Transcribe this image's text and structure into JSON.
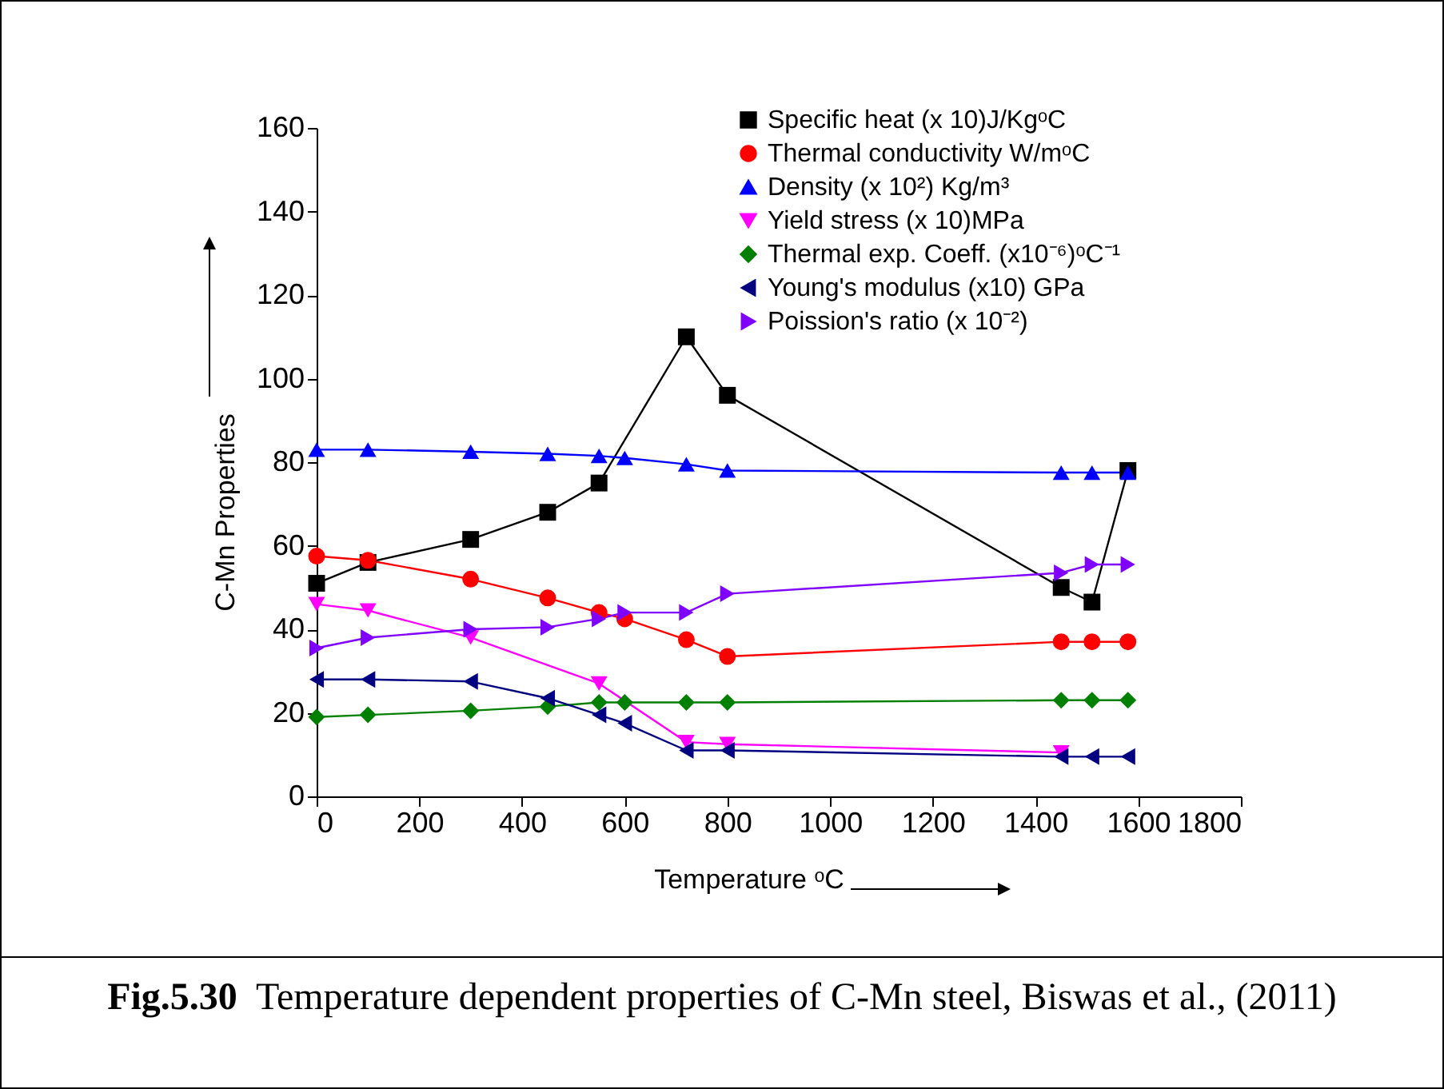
{
  "chart_data": {
    "type": "line",
    "xlabel": "Temperature ᵒC",
    "ylabel": "C-Mn Properties",
    "annotations": [
      "Fig.5.30",
      "Temperature dependent properties of C-Mn steel, Biswas et al., (2011)"
    ],
    "xlim": [
      0,
      1800
    ],
    "xticks": [
      0,
      200,
      400,
      600,
      800,
      1000,
      1200,
      1400,
      1600,
      1800
    ],
    "ylim": [
      0,
      160
    ],
    "yticks": [
      0,
      20,
      40,
      60,
      80,
      100,
      120,
      140,
      160
    ],
    "grid": false,
    "legend": "top right",
    "series": [
      {
        "name": "Specific heat (x 10)J/KgᵒC",
        "color": "#000000",
        "marker": "square",
        "x": [
          0,
          100,
          300,
          450,
          550,
          720,
          800,
          1450,
          1510,
          1580
        ],
        "values": [
          51,
          56,
          61.5,
          68,
          75,
          110,
          96,
          50,
          46.5,
          78
        ]
      },
      {
        "name": "Thermal conductivity W/mᵒC",
        "color": "#ff0000",
        "marker": "circle",
        "x": [
          0,
          100,
          300,
          450,
          550,
          600,
          720,
          800,
          1450,
          1510,
          1580
        ],
        "values": [
          57.5,
          56.5,
          52,
          47.5,
          44,
          42.5,
          37.5,
          33.5,
          37,
          37,
          37
        ]
      },
      {
        "name": "Density (x 10²) Kg/m³",
        "color": "#0000ff",
        "marker": "triangle",
        "x": [
          0,
          100,
          300,
          450,
          550,
          600,
          720,
          800,
          1450,
          1510,
          1580
        ],
        "values": [
          83,
          83,
          82.5,
          82,
          81.5,
          81,
          79.5,
          78,
          77.5,
          77.5,
          77.5
        ]
      },
      {
        "name": "Yield stress (x 10)MPa",
        "color": "#ff00ff",
        "marker": "triangle-down",
        "x": [
          0,
          100,
          300,
          550,
          720,
          800,
          1450
        ],
        "values": [
          46,
          44.5,
          38,
          27,
          13,
          12.5,
          10.5
        ]
      },
      {
        "name": "Thermal exp. Coeff. (x10⁻⁶)ᵒC⁻¹",
        "color": "#008000",
        "marker": "diamond",
        "x": [
          0,
          100,
          300,
          450,
          550,
          600,
          720,
          800,
          1450,
          1510,
          1580
        ],
        "values": [
          19,
          19.5,
          20.5,
          21.5,
          22.5,
          22.5,
          22.5,
          22.5,
          23,
          23,
          23
        ]
      },
      {
        "name": "Young's modulus (x10) GPa",
        "color": "#000080",
        "marker": "triangle-left",
        "x": [
          0,
          100,
          300,
          450,
          550,
          600,
          720,
          800,
          1450,
          1510,
          1580
        ],
        "values": [
          28,
          28,
          27.5,
          23.5,
          19.5,
          17.5,
          11,
          11,
          9.5,
          9.5,
          9.5
        ]
      },
      {
        "name": "Poission's ratio (x 10⁻²)",
        "color": "#8000ff",
        "marker": "triangle-right",
        "x": [
          0,
          100,
          300,
          450,
          550,
          600,
          720,
          800,
          1450,
          1510,
          1580
        ],
        "values": [
          35.5,
          38,
          40,
          40.5,
          42.5,
          44,
          44,
          48.5,
          53.5,
          55.5,
          55.5
        ]
      }
    ]
  }
}
